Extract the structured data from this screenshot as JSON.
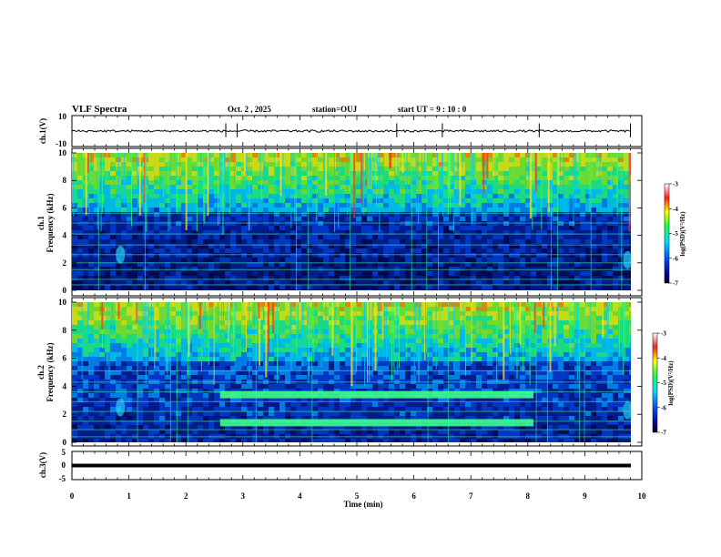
{
  "header": {
    "title": "VLF Spectra",
    "date": "Oct. 2 , 2025",
    "station": "station=OUJ",
    "start": "start UT = 9 : 10 : 0"
  },
  "colors": {
    "spectrogram_base": "#000a44",
    "band_green": "#3cff8c",
    "trace": "#000000"
  },
  "chart_data": [
    {
      "type": "line",
      "name": "ch1-waveform",
      "ylabel": "ch.1(V)",
      "ylim": [
        -10,
        10
      ],
      "yticks": [
        "10",
        "-10"
      ],
      "xlim": [
        0,
        10
      ],
      "baseline": 0,
      "spikes_at_min": [
        2.7,
        2.9,
        5.7,
        6.5,
        8.2,
        9.8
      ]
    },
    {
      "type": "heatmap",
      "name": "ch1-spectrogram",
      "ylabel_line1": "ch.1",
      "ylabel_line2": "Frequency (kHz)",
      "ylim": [
        0,
        10
      ],
      "yticks": [
        "0",
        "2",
        "4",
        "6",
        "8",
        "10"
      ],
      "xlim": [
        0,
        10
      ],
      "colorbar": {
        "label": "log(PSD)(V²/Hz)",
        "range": [
          -7,
          -3
        ],
        "ticks": [
          "-3",
          "-4",
          "-5",
          "-6",
          "-7"
        ]
      },
      "features": [
        {
          "label": "broadband noise above",
          "freq_khz_from": 6.0,
          "freq_khz_to": 10
        },
        {
          "label": "patch",
          "time_min": 0.85,
          "freq_khz": 2.6
        },
        {
          "label": "patch",
          "time_min": 9.75,
          "freq_khz": 2.2
        }
      ],
      "lines_khz": [
        0.4,
        0.8,
        1.5,
        2.0,
        2.6,
        3.3,
        4.1,
        4.9,
        5.6
      ]
    },
    {
      "type": "heatmap",
      "name": "ch2-spectrogram",
      "ylabel_line1": "ch.2",
      "ylabel_line2": "Frequency (kHz)",
      "ylim": [
        0,
        10
      ],
      "yticks": [
        "0",
        "2",
        "4",
        "6",
        "8",
        "10"
      ],
      "xlim": [
        0,
        10
      ],
      "colorbar": {
        "label": "log(PSD)(V²/Hz)",
        "range": [
          -7,
          -3
        ],
        "ticks": [
          "-3",
          "-4",
          "-5",
          "-6",
          "-7"
        ]
      },
      "features": [
        {
          "label": "band",
          "time_min_from": 2.6,
          "time_min_to": 8.1,
          "freq_khz": 3.4
        },
        {
          "label": "band",
          "time_min_from": 2.6,
          "time_min_to": 8.1,
          "freq_khz": 1.4
        },
        {
          "label": "patch",
          "time_min": 0.85,
          "freq_khz": 2.5
        },
        {
          "label": "patch",
          "time_min": 9.75,
          "freq_khz": 2.3
        }
      ],
      "lines_khz": [
        0.4,
        0.9,
        1.5,
        2.2,
        2.9,
        3.6,
        4.3,
        5.1
      ]
    },
    {
      "type": "line",
      "name": "ch3-waveform",
      "ylabel": "ch.3(V)",
      "ylim": [
        -5,
        5
      ],
      "yticks": [
        "5",
        "0",
        "-5"
      ],
      "xlim": [
        0,
        10
      ],
      "baseline": -1.0
    }
  ],
  "xaxis": {
    "label": "Time (min)",
    "ticks": [
      "0",
      "1",
      "2",
      "3",
      "4",
      "5",
      "6",
      "7",
      "8",
      "9",
      "10"
    ]
  }
}
